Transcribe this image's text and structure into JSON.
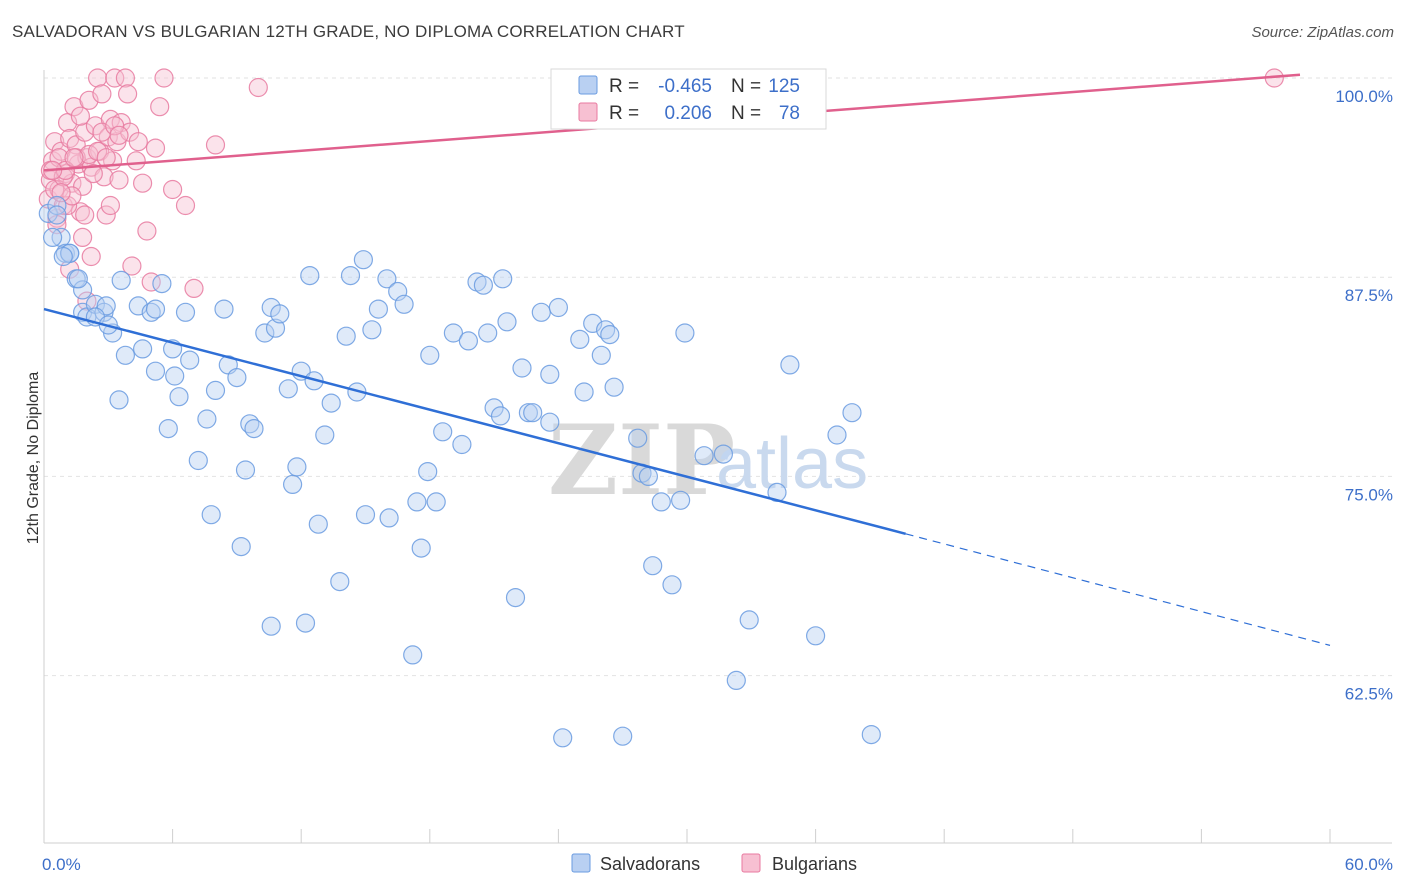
{
  "header": {
    "title": "SALVADORAN VS BULGARIAN 12TH GRADE, NO DIPLOMA CORRELATION CHART",
    "source": "Source: ZipAtlas.com"
  },
  "watermark": {
    "zip": "ZIP",
    "atlas": "atlas"
  },
  "legend_top": {
    "rows": [
      {
        "r_label": "R =",
        "r_value": "-0.465",
        "n_label": "N =",
        "n_value": "125",
        "color": "#6a9be0",
        "fill": "#b9d0f2"
      },
      {
        "r_label": "R =",
        "r_value": "0.206",
        "n_label": "N =",
        "n_value": "78",
        "color": "#e87aa0",
        "fill": "#f7c0d2"
      }
    ]
  },
  "legend_bottom": {
    "items": [
      {
        "label": "Salvadorans",
        "color": "#6a9be0",
        "fill": "#b9d0f2"
      },
      {
        "label": "Bulgarians",
        "color": "#e87aa0",
        "fill": "#f7c0d2"
      }
    ]
  },
  "chart_data": {
    "type": "scatter",
    "title": "SALVADORAN VS BULGARIAN 12TH GRADE, NO DIPLOMA CORRELATION CHART",
    "xlabel": "",
    "ylabel": "12th Grade, No Diploma",
    "xlim": [
      0,
      60
    ],
    "ylim": [
      52,
      100.5
    ],
    "x_tick_labels": [
      "0.0%",
      "60.0%"
    ],
    "y_ticks": [
      62.5,
      75.0,
      87.5,
      100.0
    ],
    "y_tick_labels": [
      "62.5%",
      "75.0%",
      "87.5%",
      "100.0%"
    ],
    "grid": true,
    "series": [
      {
        "name": "Salvadorans",
        "color": "#6a9be0",
        "fill": "#b9d0f2",
        "trend": {
          "x0": 0,
          "y0": 85.5,
          "x1": 40.2,
          "y1": 71.4,
          "dash_x1": 60,
          "dash_y1": 64.4
        },
        "points": [
          [
            0.2,
            91.5
          ],
          [
            0.6,
            92.0
          ],
          [
            0.8,
            90.0
          ],
          [
            1.0,
            89.0
          ],
          [
            1.2,
            89.0
          ],
          [
            1.5,
            87.4
          ],
          [
            1.8,
            86.7
          ],
          [
            1.8,
            85.3
          ],
          [
            2.0,
            85.0
          ],
          [
            2.4,
            85.8
          ],
          [
            2.8,
            85.3
          ],
          [
            2.9,
            85.7
          ],
          [
            3.2,
            84.0
          ],
          [
            3.6,
            87.3
          ],
          [
            3.8,
            82.6
          ],
          [
            3.5,
            79.8
          ],
          [
            4.4,
            85.7
          ],
          [
            4.6,
            83.0
          ],
          [
            5.0,
            85.3
          ],
          [
            5.2,
            81.6
          ],
          [
            5.5,
            87.1
          ],
          [
            5.8,
            78.0
          ],
          [
            6.0,
            83.0
          ],
          [
            6.3,
            80.0
          ],
          [
            6.6,
            85.3
          ],
          [
            6.8,
            82.3
          ],
          [
            7.2,
            76.0
          ],
          [
            7.6,
            78.6
          ],
          [
            7.8,
            72.6
          ],
          [
            8.0,
            80.4
          ],
          [
            8.4,
            85.5
          ],
          [
            8.6,
            82.0
          ],
          [
            9.0,
            81.2
          ],
          [
            9.2,
            70.6
          ],
          [
            9.4,
            75.4
          ],
          [
            9.6,
            78.3
          ],
          [
            9.8,
            78.0
          ],
          [
            10.3,
            84.0
          ],
          [
            10.6,
            65.6
          ],
          [
            10.6,
            85.6
          ],
          [
            10.8,
            84.3
          ],
          [
            11.0,
            85.2
          ],
          [
            11.4,
            80.5
          ],
          [
            11.6,
            74.5
          ],
          [
            11.8,
            75.6
          ],
          [
            12.0,
            81.6
          ],
          [
            12.2,
            65.8
          ],
          [
            12.6,
            81.0
          ],
          [
            12.4,
            87.6
          ],
          [
            12.8,
            72.0
          ],
          [
            13.1,
            77.6
          ],
          [
            13.4,
            79.6
          ],
          [
            13.8,
            68.4
          ],
          [
            14.1,
            83.8
          ],
          [
            14.3,
            87.6
          ],
          [
            14.6,
            80.3
          ],
          [
            14.9,
            88.6
          ],
          [
            15.0,
            72.6
          ],
          [
            15.3,
            84.2
          ],
          [
            15.6,
            85.5
          ],
          [
            16.1,
            72.4
          ],
          [
            16.0,
            87.4
          ],
          [
            16.5,
            86.6
          ],
          [
            16.8,
            85.8
          ],
          [
            17.2,
            63.8
          ],
          [
            17.4,
            73.4
          ],
          [
            17.6,
            70.5
          ],
          [
            17.9,
            75.3
          ],
          [
            18.0,
            82.6
          ],
          [
            18.3,
            73.4
          ],
          [
            18.6,
            77.8
          ],
          [
            19.1,
            84.0
          ],
          [
            19.5,
            77.0
          ],
          [
            19.8,
            83.5
          ],
          [
            20.2,
            87.2
          ],
          [
            20.5,
            87.0
          ],
          [
            20.7,
            84.0
          ],
          [
            21.0,
            79.3
          ],
          [
            21.4,
            87.4
          ],
          [
            21.3,
            78.8
          ],
          [
            21.6,
            84.7
          ],
          [
            22.0,
            67.4
          ],
          [
            22.3,
            81.8
          ],
          [
            22.6,
            79.0
          ],
          [
            22.8,
            79.0
          ],
          [
            23.2,
            85.3
          ],
          [
            23.6,
            81.4
          ],
          [
            23.6,
            78.4
          ],
          [
            24.0,
            85.6
          ],
          [
            25.0,
            83.6
          ],
          [
            25.2,
            80.3
          ],
          [
            25.6,
            84.6
          ],
          [
            26.0,
            82.6
          ],
          [
            26.2,
            84.2
          ],
          [
            26.4,
            83.9
          ],
          [
            26.6,
            80.6
          ],
          [
            27.7,
            77.4
          ],
          [
            27.9,
            75.2
          ],
          [
            28.2,
            75.0
          ],
          [
            28.4,
            69.4
          ],
          [
            28.8,
            73.4
          ],
          [
            29.3,
            68.2
          ],
          [
            29.7,
            73.5
          ],
          [
            29.9,
            84.0
          ],
          [
            30.8,
            76.3
          ],
          [
            31.7,
            76.4
          ],
          [
            32.3,
            62.2
          ],
          [
            32.9,
            66.0
          ],
          [
            34.2,
            74.0
          ],
          [
            34.8,
            82.0
          ],
          [
            36.0,
            65.0
          ],
          [
            37.0,
            77.6
          ],
          [
            37.7,
            79.0
          ],
          [
            38.6,
            58.8
          ],
          [
            27.0,
            58.7
          ],
          [
            24.2,
            58.6
          ],
          [
            0.4,
            90.0
          ],
          [
            1.2,
            89.0
          ],
          [
            0.9,
            88.8
          ],
          [
            1.6,
            87.4
          ],
          [
            2.4,
            85.0
          ],
          [
            3.0,
            84.5
          ],
          [
            5.2,
            85.5
          ],
          [
            6.1,
            81.3
          ],
          [
            0.6,
            91.4
          ]
        ]
      },
      {
        "name": "Bulgarians",
        "color": "#e87aa0",
        "fill": "#f7c0d2",
        "trend": {
          "x0": 0,
          "y0": 94.2,
          "x1": 58.6,
          "y1": 100.2
        },
        "points": [
          [
            0.2,
            92.4
          ],
          [
            0.3,
            93.6
          ],
          [
            0.4,
            94.8
          ],
          [
            0.5,
            96.0
          ],
          [
            0.6,
            91.2
          ],
          [
            0.7,
            93.0
          ],
          [
            0.8,
            95.4
          ],
          [
            0.9,
            92.0
          ],
          [
            1.0,
            94.0
          ],
          [
            1.1,
            97.2
          ],
          [
            1.2,
            96.2
          ],
          [
            1.3,
            93.4
          ],
          [
            1.4,
            98.2
          ],
          [
            1.5,
            95.8
          ],
          [
            1.6,
            94.6
          ],
          [
            1.7,
            91.6
          ],
          [
            1.8,
            93.2
          ],
          [
            1.9,
            96.6
          ],
          [
            2.0,
            95.0
          ],
          [
            2.1,
            98.6
          ],
          [
            2.2,
            94.4
          ],
          [
            2.4,
            97.0
          ],
          [
            2.5,
            100.0
          ],
          [
            2.6,
            95.4
          ],
          [
            2.7,
            99.0
          ],
          [
            2.8,
            93.8
          ],
          [
            2.9,
            91.4
          ],
          [
            3.0,
            96.3
          ],
          [
            3.1,
            97.4
          ],
          [
            3.2,
            94.8
          ],
          [
            3.3,
            100.0
          ],
          [
            3.4,
            96.0
          ],
          [
            3.5,
            93.6
          ],
          [
            3.6,
            97.2
          ],
          [
            3.8,
            100.0
          ],
          [
            3.9,
            99.0
          ],
          [
            4.0,
            96.6
          ],
          [
            4.1,
            88.2
          ],
          [
            4.3,
            94.8
          ],
          [
            4.4,
            96.0
          ],
          [
            4.6,
            93.4
          ],
          [
            4.8,
            90.4
          ],
          [
            5.0,
            87.2
          ],
          [
            5.2,
            95.6
          ],
          [
            5.4,
            98.2
          ],
          [
            5.6,
            100.0
          ],
          [
            6.0,
            93.0
          ],
          [
            6.6,
            92.0
          ],
          [
            7.0,
            86.8
          ],
          [
            8.0,
            95.8
          ],
          [
            10.0,
            99.4
          ],
          [
            0.3,
            94.2
          ],
          [
            0.5,
            93.0
          ],
          [
            0.7,
            95.0
          ],
          [
            0.9,
            93.8
          ],
          [
            1.1,
            92.0
          ],
          [
            1.3,
            92.6
          ],
          [
            1.5,
            95.0
          ],
          [
            1.7,
            97.6
          ],
          [
            1.9,
            91.4
          ],
          [
            2.1,
            95.2
          ],
          [
            2.3,
            94.0
          ],
          [
            2.5,
            95.4
          ],
          [
            2.7,
            96.6
          ],
          [
            2.9,
            95.0
          ],
          [
            3.1,
            92.0
          ],
          [
            3.3,
            97.0
          ],
          [
            3.5,
            96.4
          ],
          [
            1.0,
            94.2
          ],
          [
            0.8,
            92.8
          ],
          [
            0.6,
            90.8
          ],
          [
            1.4,
            95.0
          ],
          [
            2.0,
            86.0
          ],
          [
            2.2,
            88.8
          ],
          [
            1.2,
            88.0
          ],
          [
            1.8,
            90.0
          ],
          [
            0.4,
            94.2
          ],
          [
            57.4,
            100.0
          ]
        ]
      }
    ]
  }
}
